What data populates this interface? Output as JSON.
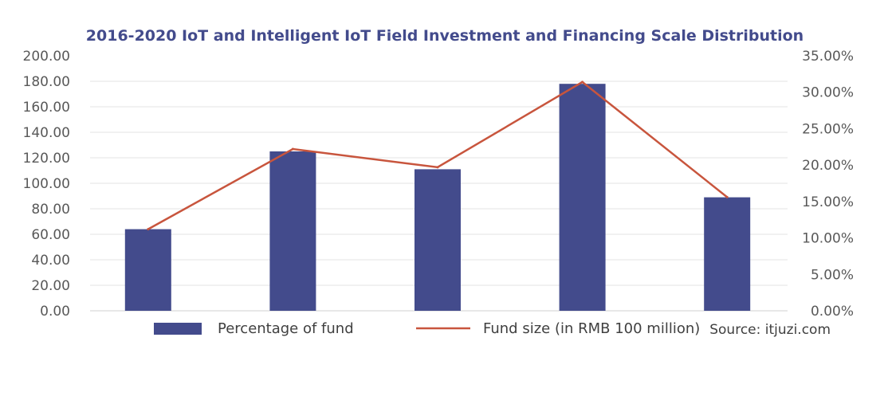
{
  "chart_data": {
    "type": "bar",
    "title": "2016-2020 IoT and Intelligent IoT Field Investment and Financing Scale Distribution",
    "categories": [
      "",
      "",
      "",
      "",
      ""
    ],
    "y_left": {
      "ylim": [
        0,
        200
      ],
      "tick_values": [
        0,
        20,
        40,
        60,
        80,
        100,
        120,
        140,
        160,
        180,
        200
      ],
      "tick_labels": [
        "0.00",
        "20.00",
        "40.00",
        "60.00",
        "80.00",
        "100.00",
        "120.00",
        "140.00",
        "160.00",
        "180.00",
        "200.00"
      ]
    },
    "y_right": {
      "ylim": [
        0,
        0.35
      ],
      "tick_values": [
        0,
        0.05,
        0.1,
        0.15,
        0.2,
        0.25,
        0.3,
        0.35
      ],
      "tick_labels": [
        "0.00%",
        "5.00%",
        "10.00%",
        "15.00%",
        "20.00%",
        "25.00%",
        "30.00%",
        "35.00%"
      ]
    },
    "grid": true,
    "legend_position": "bottom",
    "series": [
      {
        "name": "Percentage of fund",
        "type": "bar",
        "axis": "left",
        "color": "#434b8c",
        "values": [
          64,
          125,
          111,
          178,
          89
        ]
      },
      {
        "name": "Fund size (in RMB 100 million)",
        "type": "line",
        "axis": "right",
        "color": "#c8553d",
        "values": [
          0.112,
          0.222,
          0.197,
          0.314,
          0.156
        ]
      }
    ],
    "source": "Source: itjuzi.com",
    "title_color": "#434b8c"
  }
}
